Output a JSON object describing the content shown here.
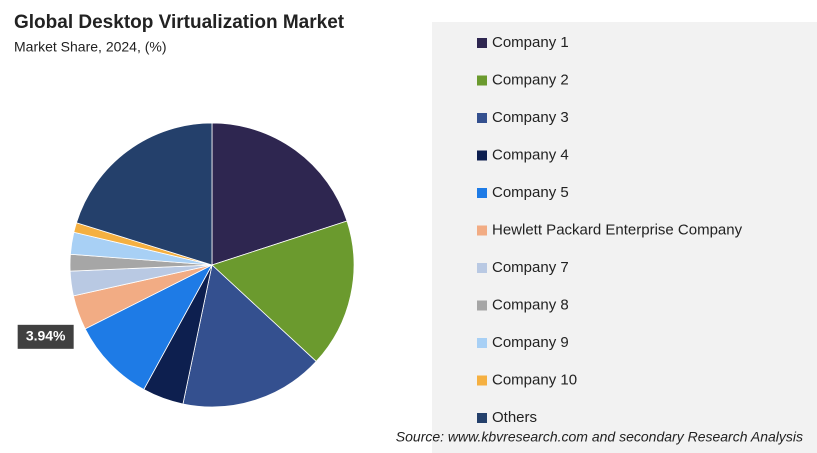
{
  "chart_data": {
    "type": "pie",
    "title": "Global Desktop Virtualization Market",
    "subtitle": "Market Share, 2024, (%)",
    "source": "Source: www.kbvresearch.com and secondary Research Analysis",
    "categories": [
      "Company 1",
      "Company 2",
      "Company 3",
      "Company 4",
      "Company 5",
      "Hewlett Packard Enterprise Company",
      "Company 7",
      "Company 8",
      "Company 9",
      "Company 10",
      "Others"
    ],
    "values": [
      20,
      16.9,
      16.4,
      4.7,
      9.6,
      3.94,
      2.8,
      1.9,
      2.5,
      1.1,
      20.2
    ],
    "value_labels": [
      null,
      null,
      null,
      null,
      null,
      "3.94%",
      null,
      null,
      null,
      null,
      null
    ],
    "colors": [
      "#2e2650",
      "#6b9a2e",
      "#34508f",
      "#0d1f4f",
      "#1e7be6",
      "#f2ac84",
      "#b9c9e3",
      "#a6a6a6",
      "#a8d0f5",
      "#f5b041",
      "#24406b"
    ]
  }
}
